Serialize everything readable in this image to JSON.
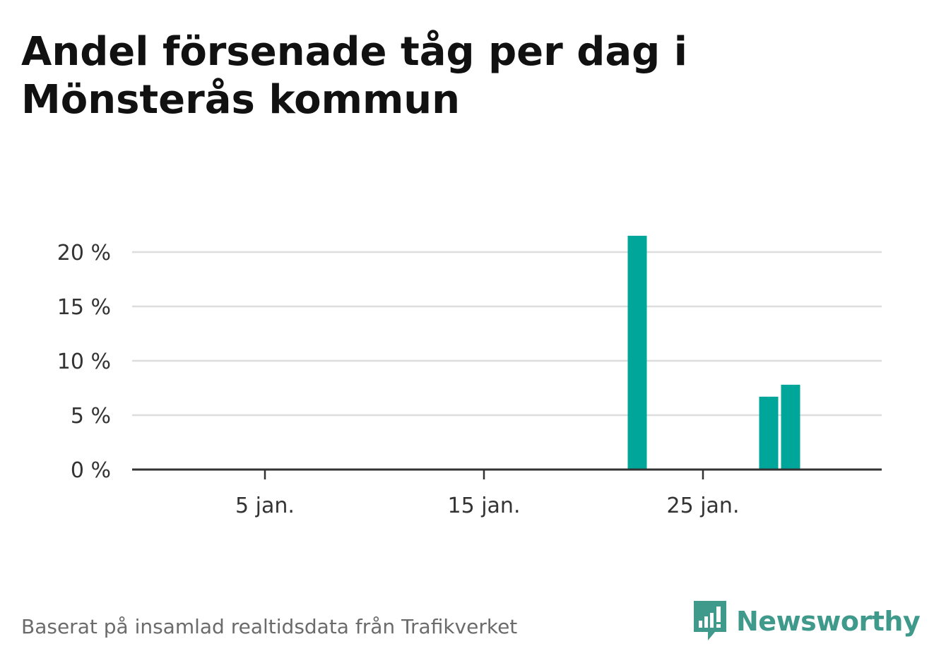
{
  "title": "Andel försenade tåg per dag i Mönsterås kommun",
  "footer": {
    "source": "Baserat på insamlad realtidsdata från Trafikverket",
    "brand": "Newsworthy"
  },
  "colors": {
    "bar": "#00a69a",
    "grid": "#dddddd",
    "axis": "#333333",
    "brand": "#3f9a8c"
  },
  "chart_data": {
    "type": "bar",
    "x_domain": [
      1,
      31
    ],
    "x_ticks": [
      {
        "day": 5,
        "label": "5 jan."
      },
      {
        "day": 15,
        "label": "15 jan."
      },
      {
        "day": 25,
        "label": "25 jan."
      }
    ],
    "y_ticks": [
      {
        "value": 0,
        "label": "0 %"
      },
      {
        "value": 5,
        "label": "5 %"
      },
      {
        "value": 10,
        "label": "10 %"
      },
      {
        "value": 15,
        "label": "15 %"
      },
      {
        "value": 20,
        "label": "20 %"
      }
    ],
    "ylim": [
      0,
      20
    ],
    "grid": true,
    "unit": "%",
    "bars": [
      {
        "day": 22,
        "value": 21.5
      },
      {
        "day": 28,
        "value": 6.7
      },
      {
        "day": 29,
        "value": 7.8
      }
    ]
  }
}
